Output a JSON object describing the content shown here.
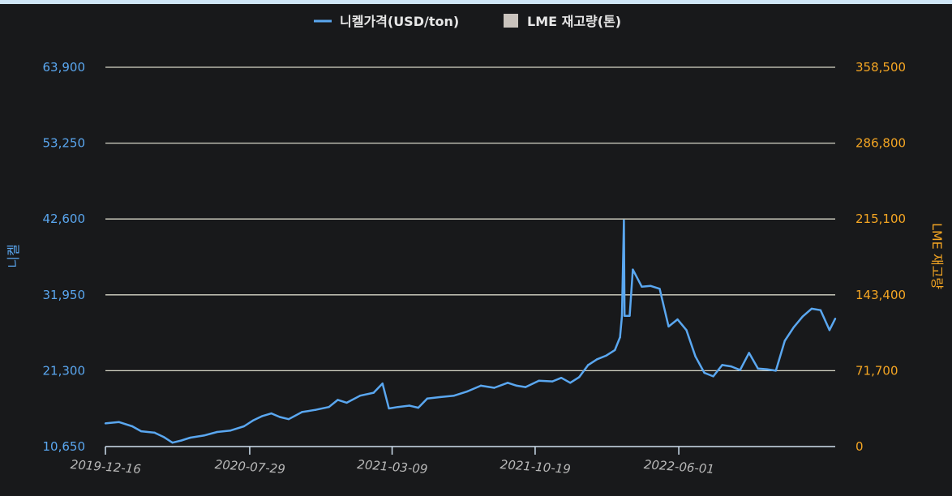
{
  "chart_data": {
    "type": "line",
    "legend": {
      "placement": "top-center",
      "items": [
        {
          "label": "니켈가격(USD/ton)",
          "color": "#5aa7f0",
          "marker": "line"
        },
        {
          "label": "LME 재고량(톤)",
          "color": "#c9c3bd",
          "marker": "square"
        }
      ]
    },
    "ylabel_left": "니켈",
    "ylabel_right": "LME 재고량",
    "yticks_left": [
      "10,650",
      "21,300",
      "31,950",
      "42,600",
      "53,250",
      "63,900"
    ],
    "yticks_right": [
      "0",
      "71,700",
      "143,400",
      "215,100",
      "286,800",
      "358,500"
    ],
    "xticks": [
      "2019-12-16",
      "2020-07-29",
      "2021-03-09",
      "2021-10-19",
      "2022-06-01"
    ],
    "xtick_values": [
      "2019-12-16",
      "2020-07-29",
      "2021-03-09",
      "2021-10-19",
      "2022-06-01"
    ],
    "ylim_left": [
      10650,
      63900
    ],
    "ylim_right": [
      0,
      358500
    ],
    "xlim": [
      "2019-12-16",
      "2023-02-01"
    ],
    "grid": true,
    "series": [
      {
        "name": "니켈가격(USD/ton)",
        "axis": "left",
        "color": "#5aa7f0",
        "points": [
          [
            "2019-12-16",
            13900
          ],
          [
            "2020-01-06",
            14100
          ],
          [
            "2020-01-27",
            13500
          ],
          [
            "2020-02-10",
            12800
          ],
          [
            "2020-03-02",
            12600
          ],
          [
            "2020-03-16",
            12000
          ],
          [
            "2020-03-30",
            11200
          ],
          [
            "2020-04-13",
            11500
          ],
          [
            "2020-04-27",
            11900
          ],
          [
            "2020-05-18",
            12200
          ],
          [
            "2020-06-08",
            12700
          ],
          [
            "2020-06-29",
            12900
          ],
          [
            "2020-07-20",
            13500
          ],
          [
            "2020-08-03",
            14300
          ],
          [
            "2020-08-17",
            14900
          ],
          [
            "2020-09-01",
            15300
          ],
          [
            "2020-09-14",
            14800
          ],
          [
            "2020-09-28",
            14500
          ],
          [
            "2020-10-19",
            15500
          ],
          [
            "2020-11-09",
            15800
          ],
          [
            "2020-11-30",
            16200
          ],
          [
            "2020-12-14",
            17200
          ],
          [
            "2020-12-28",
            16800
          ],
          [
            "2021-01-18",
            17800
          ],
          [
            "2021-02-08",
            18200
          ],
          [
            "2021-02-22",
            19500
          ],
          [
            "2021-03-04",
            16000
          ],
          [
            "2021-03-18",
            16200
          ],
          [
            "2021-04-05",
            16400
          ],
          [
            "2021-04-19",
            16100
          ],
          [
            "2021-05-03",
            17400
          ],
          [
            "2021-05-24",
            17600
          ],
          [
            "2021-06-14",
            17800
          ],
          [
            "2021-07-05",
            18400
          ],
          [
            "2021-07-26",
            19200
          ],
          [
            "2021-08-16",
            18900
          ],
          [
            "2021-09-06",
            19600
          ],
          [
            "2021-09-20",
            19200
          ],
          [
            "2021-10-04",
            19000
          ],
          [
            "2021-10-25",
            19900
          ],
          [
            "2021-11-15",
            19800
          ],
          [
            "2021-11-29",
            20300
          ],
          [
            "2021-12-13",
            19600
          ],
          [
            "2021-12-27",
            20400
          ],
          [
            "2022-01-10",
            22100
          ],
          [
            "2022-01-24",
            22900
          ],
          [
            "2022-02-07",
            23400
          ],
          [
            "2022-02-21",
            24200
          ],
          [
            "2022-03-01",
            26000
          ],
          [
            "2022-03-04",
            29000
          ],
          [
            "2022-03-07",
            42400
          ],
          [
            "2022-03-08",
            29000
          ],
          [
            "2022-03-16",
            29000
          ],
          [
            "2022-03-21",
            35500
          ],
          [
            "2022-04-04",
            33100
          ],
          [
            "2022-04-18",
            33200
          ],
          [
            "2022-05-02",
            32800
          ],
          [
            "2022-05-16",
            27500
          ],
          [
            "2022-05-30",
            28500
          ],
          [
            "2022-06-13",
            27000
          ],
          [
            "2022-06-27",
            23300
          ],
          [
            "2022-07-11",
            21000
          ],
          [
            "2022-07-25",
            20500
          ],
          [
            "2022-08-08",
            22100
          ],
          [
            "2022-08-22",
            21900
          ],
          [
            "2022-09-05",
            21400
          ],
          [
            "2022-09-19",
            23800
          ],
          [
            "2022-10-03",
            21600
          ],
          [
            "2022-10-17",
            21500
          ],
          [
            "2022-10-31",
            21300
          ],
          [
            "2022-11-14",
            25500
          ],
          [
            "2022-11-28",
            27400
          ],
          [
            "2022-12-12",
            28900
          ],
          [
            "2022-12-26",
            30000
          ],
          [
            "2023-01-09",
            29800
          ],
          [
            "2023-01-23",
            27000
          ],
          [
            "2023-02-01",
            28600
          ]
        ]
      }
    ]
  }
}
